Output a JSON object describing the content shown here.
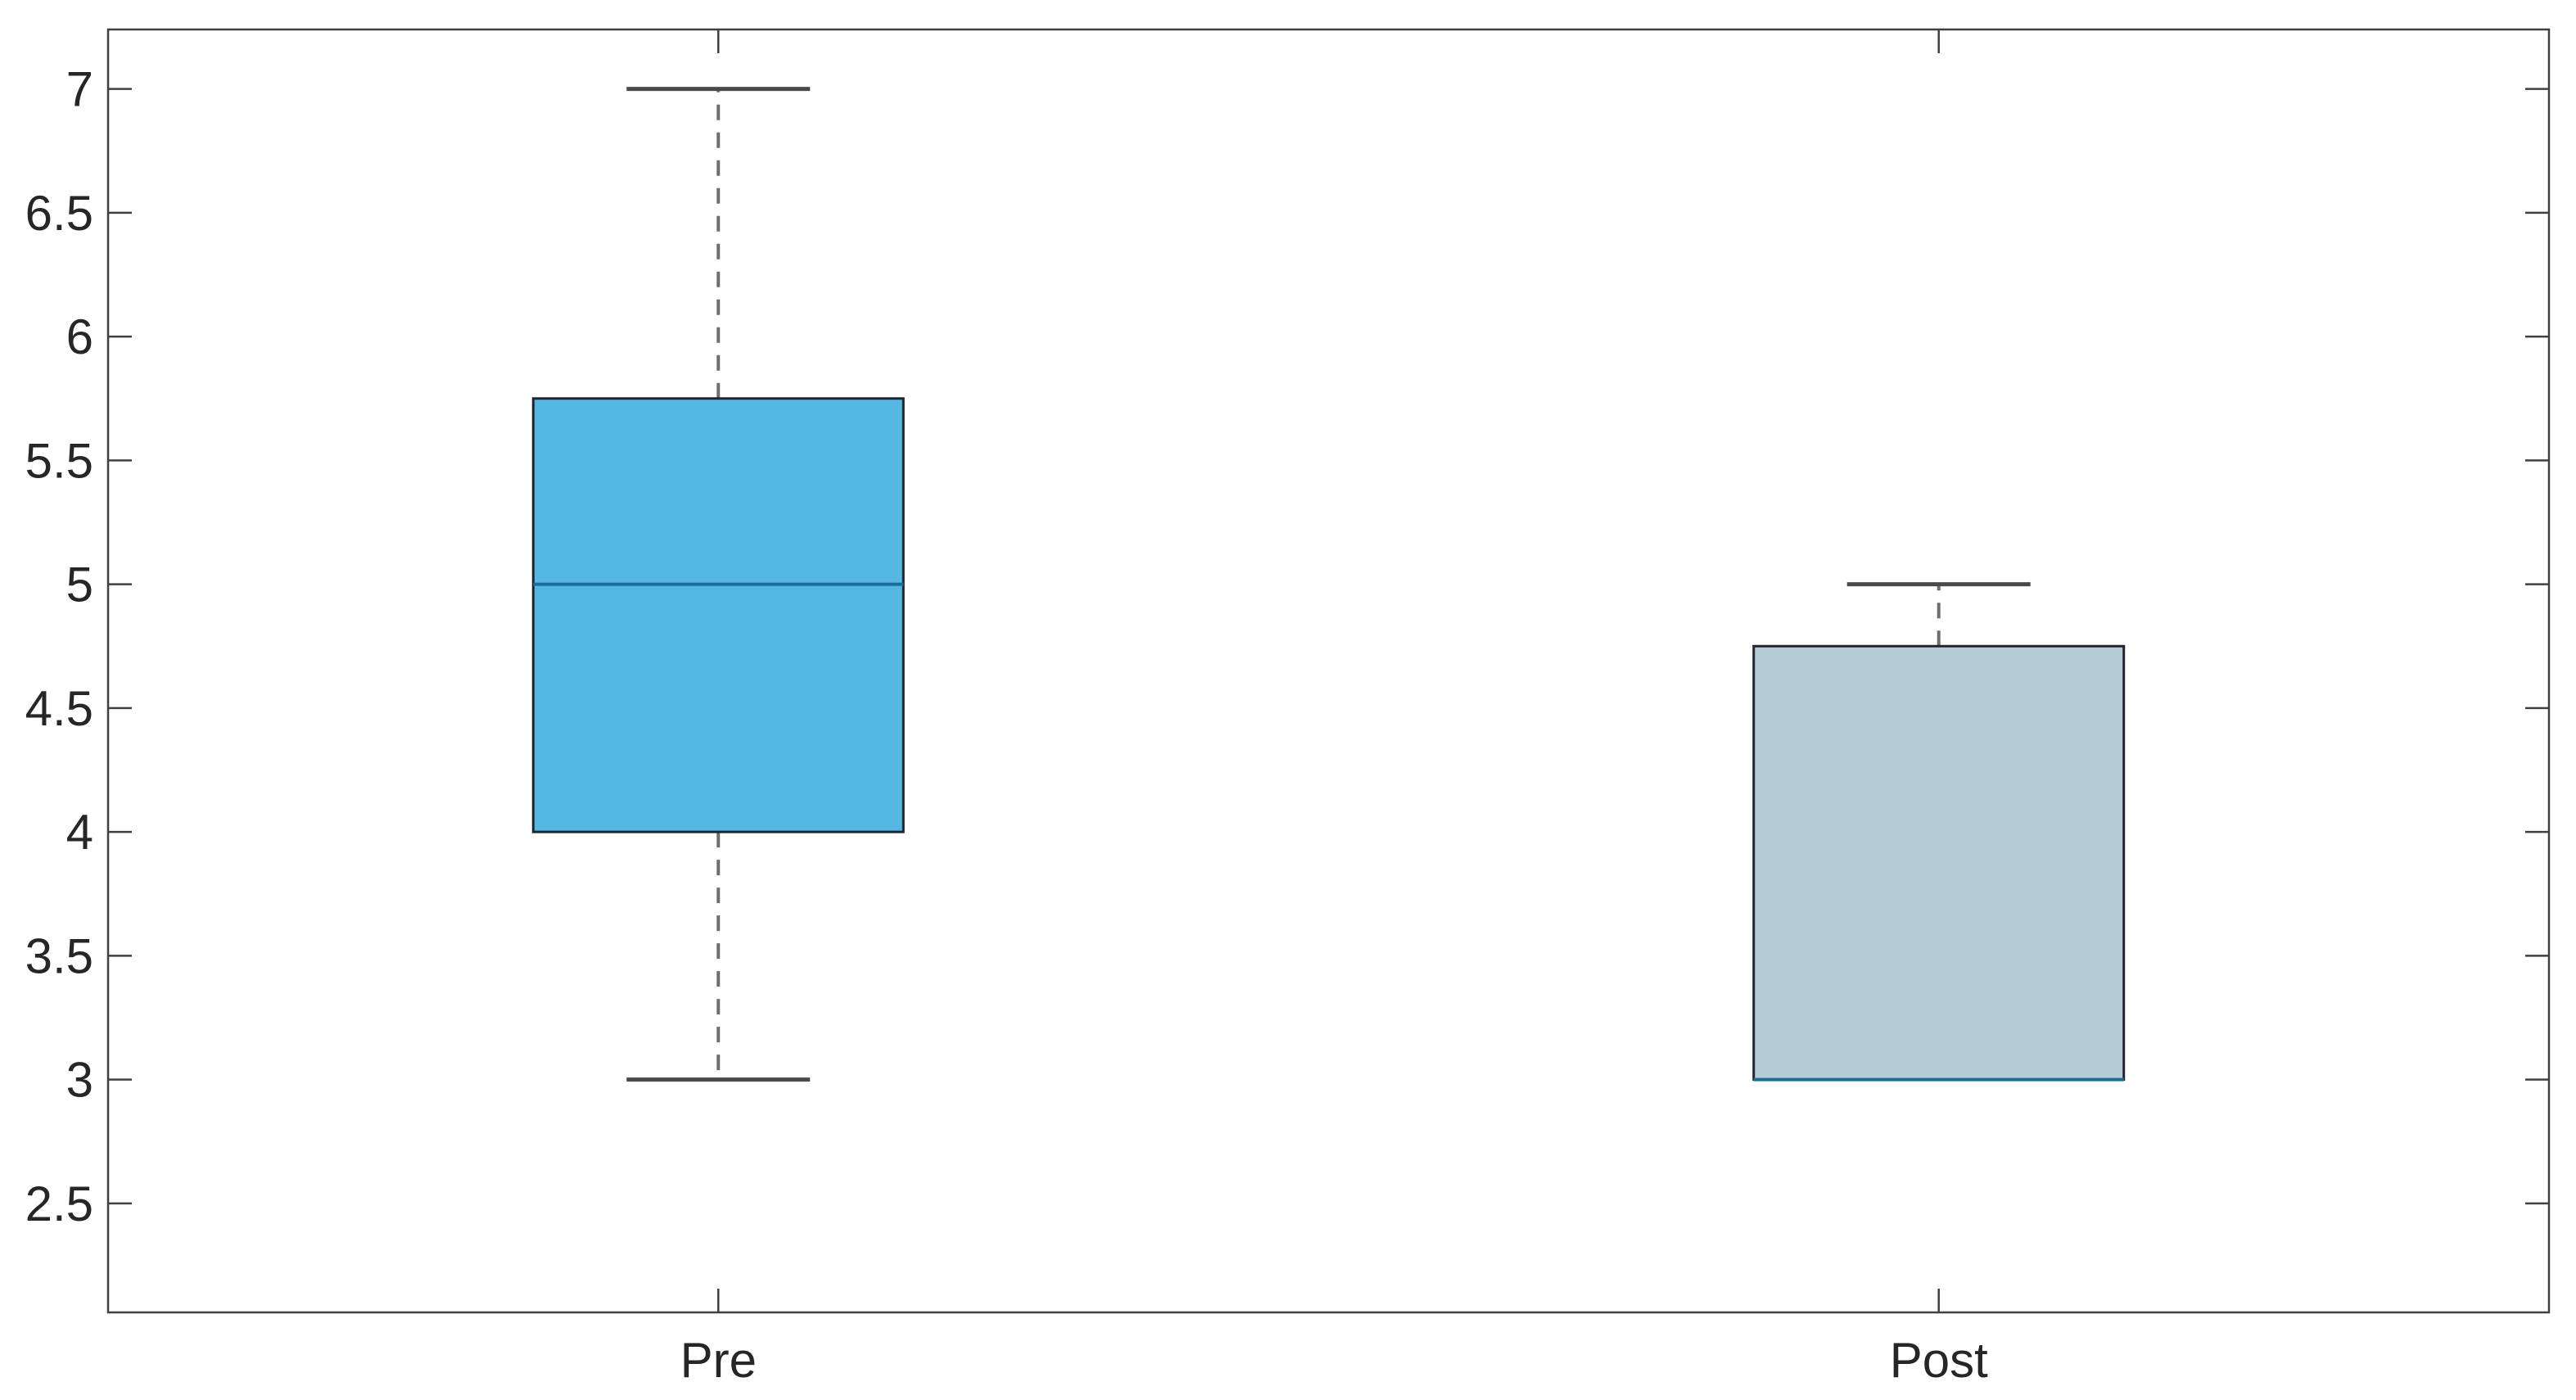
{
  "figure": {
    "background": "#ffffff"
  },
  "chart_data": {
    "type": "boxplot",
    "title": "",
    "xlabel": "",
    "ylabel": "",
    "categories": [
      "Pre",
      "Post"
    ],
    "x_positions": [
      1,
      2
    ],
    "xlim": [
      0.5,
      2.5
    ],
    "ylim": [
      2.06,
      7.24
    ],
    "yticks": [
      2.5,
      3,
      3.5,
      4,
      4.5,
      5,
      5.5,
      6,
      6.5,
      7
    ],
    "ytick_labels": [
      "2.5",
      "3",
      "3.5",
      "4",
      "4.5",
      "5",
      "5.5",
      "6",
      "6.5",
      "7"
    ],
    "grid": false,
    "legend": null,
    "series": [
      {
        "name": "Pre",
        "whisker_low": 3,
        "q1": 4,
        "median": 5,
        "q3": 5.75,
        "whisker_high": 7,
        "fill": "#55B8E2"
      },
      {
        "name": "Post",
        "whisker_low": 3,
        "q1": 3,
        "median": 3,
        "q3": 4.75,
        "whisker_high": 5,
        "fill": "#B5CCD5"
      }
    ],
    "styles": {
      "box_edge_color": "#23232D",
      "median_line_color": "#1A6D99",
      "whisker_color": "#6E6E6E",
      "cap_color": "#4A4A4A",
      "axis_color": "#404040",
      "tick_label_color": "#262626"
    }
  }
}
